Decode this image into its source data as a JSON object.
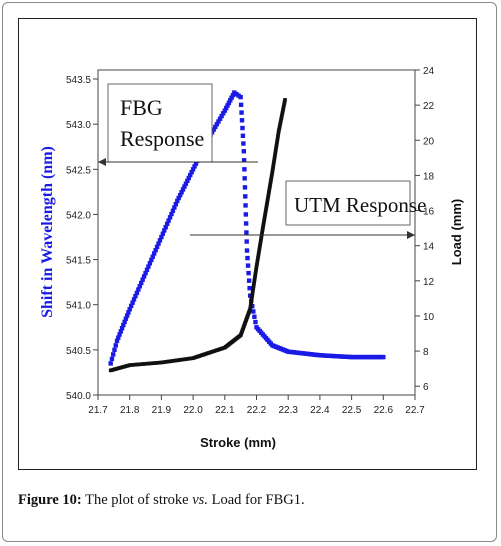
{
  "caption": {
    "label": "Figure 10:",
    "text_before": " The plot of stroke ",
    "italic": "vs.",
    "text_after": " Load for FBG1."
  },
  "chart_data": {
    "type": "scatter",
    "title": "",
    "xlabel": "Stroke (mm)",
    "ylabel_left": "Shift in Wavelength (nm)",
    "ylabel_right": "Load (mm)",
    "xlim": [
      21.7,
      22.7
    ],
    "ylim_left": [
      540.0,
      543.6
    ],
    "ylim_right": [
      5.5,
      24
    ],
    "x_ticks": [
      "21.7",
      "21.8",
      "21.9",
      "22.0",
      "22.1",
      "22.2",
      "22.3",
      "22.4",
      "22.5",
      "22.6",
      "22.7"
    ],
    "y_left_ticks": [
      "540.0",
      "540.5",
      "541.0",
      "541.5",
      "542.0",
      "542.5",
      "543.0",
      "543.5"
    ],
    "y_right_ticks": [
      "6",
      "8",
      "10",
      "12",
      "14",
      "16",
      "18",
      "20",
      "22",
      "24"
    ],
    "annotations": [
      {
        "text_lines": [
          "FBG",
          "Response"
        ],
        "arrow": "left"
      },
      {
        "text_lines": [
          "UTM Response"
        ],
        "arrow": "right"
      }
    ],
    "series": [
      {
        "axis": "left",
        "color": "#1a1ae6",
        "points": [
          [
            21.74,
            540.35
          ],
          [
            21.76,
            540.6
          ],
          [
            21.8,
            540.95
          ],
          [
            21.85,
            541.35
          ],
          [
            21.9,
            541.75
          ],
          [
            21.95,
            542.15
          ],
          [
            22.0,
            542.5
          ],
          [
            22.05,
            542.85
          ],
          [
            22.1,
            543.15
          ],
          [
            22.13,
            543.35
          ],
          [
            22.15,
            543.3
          ],
          [
            22.16,
            542.7
          ],
          [
            22.17,
            541.6
          ],
          [
            22.18,
            541.1
          ],
          [
            22.2,
            540.75
          ],
          [
            22.25,
            540.55
          ],
          [
            22.3,
            540.48
          ],
          [
            22.4,
            540.44
          ],
          [
            22.5,
            540.42
          ],
          [
            22.6,
            540.42
          ]
        ]
      },
      {
        "axis": "right",
        "color": "#111111",
        "points": [
          [
            21.74,
            6.9
          ],
          [
            21.8,
            7.2
          ],
          [
            21.9,
            7.35
          ],
          [
            22.0,
            7.6
          ],
          [
            22.05,
            7.9
          ],
          [
            22.1,
            8.2
          ],
          [
            22.15,
            8.9
          ],
          [
            22.18,
            10.4
          ],
          [
            22.2,
            12.8
          ],
          [
            22.22,
            15.0
          ],
          [
            22.25,
            18.2
          ],
          [
            22.27,
            20.5
          ],
          [
            22.29,
            22.3
          ]
        ]
      }
    ]
  }
}
